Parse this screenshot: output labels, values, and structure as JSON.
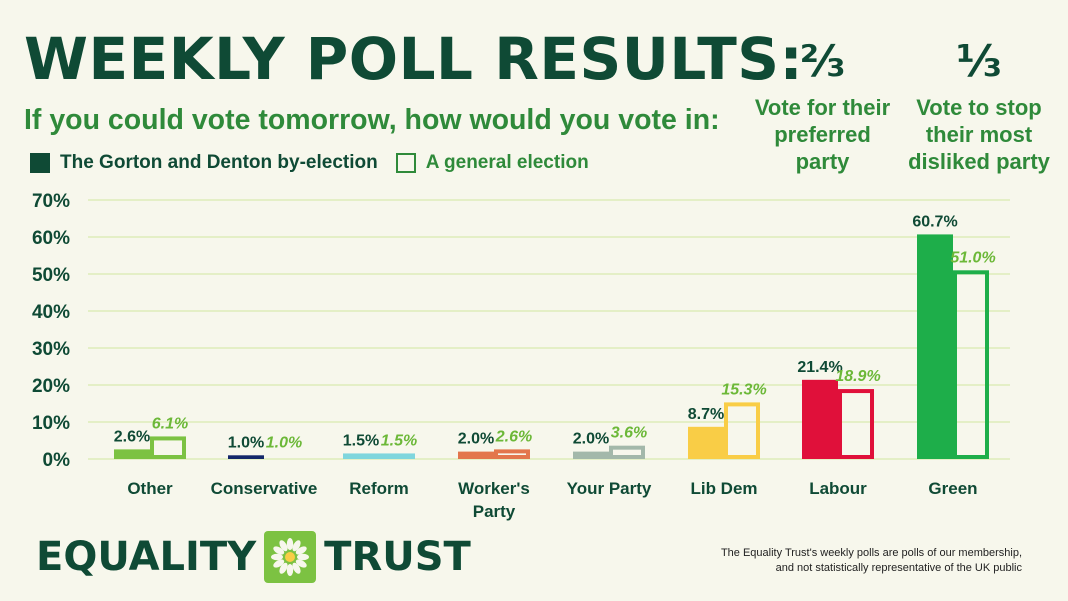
{
  "title": "WEEKLY POLL RESULTS:",
  "subtitle": "If you could vote tomorrow, how would you vote in:",
  "legend": {
    "byelection": "The Gorton and Denton by-election",
    "general": "A general election"
  },
  "stats": [
    {
      "fraction": "⅔",
      "text": [
        "Vote for their",
        "preferred",
        "party"
      ]
    },
    {
      "fraction": "⅓",
      "text": [
        "Vote to stop",
        "their most",
        "disliked party"
      ]
    }
  ],
  "chart_data": {
    "type": "bar",
    "categories": [
      "Other",
      "Conservative",
      "Reform",
      "Worker's Party",
      "Your Party",
      "Lib Dem",
      "Labour",
      "Green"
    ],
    "category_lines": [
      [
        "Other"
      ],
      [
        "Conservative"
      ],
      [
        "Reform"
      ],
      [
        "Worker's",
        "Party"
      ],
      [
        "Your Party"
      ],
      [
        "Lib Dem"
      ],
      [
        "Labour"
      ],
      [
        "Green"
      ]
    ],
    "colors": [
      "#7cc242",
      "#13276a",
      "#7fd6dd",
      "#e3764c",
      "#a3b8aa",
      "#f9cd46",
      "#e0103a",
      "#1eae4a"
    ],
    "series": [
      {
        "name": "The Gorton and Denton by-election",
        "style": "filled",
        "values": [
          2.6,
          1.0,
          1.5,
          2.0,
          2.0,
          8.7,
          21.4,
          60.7
        ],
        "labels": [
          "2.6%",
          "1.0%",
          "1.5%",
          "2.0%",
          "2.0%",
          "8.7%",
          "21.4%",
          "60.7%"
        ]
      },
      {
        "name": "A general election",
        "style": "outline",
        "values": [
          6.1,
          1.0,
          1.5,
          2.6,
          3.6,
          15.3,
          18.9,
          51.0
        ],
        "labels": [
          "6.1%",
          "1.0%",
          "1.5%",
          "2.6%",
          "3.6%",
          "15.3%",
          "18.9%",
          "51.0%"
        ]
      }
    ],
    "yticks": [
      "0%",
      "10%",
      "20%",
      "30%",
      "40%",
      "50%",
      "60%",
      "70%"
    ],
    "ylim": [
      0,
      70
    ],
    "grid": true
  },
  "brand": {
    "left": "EQUALITY",
    "right": "TRUST"
  },
  "disclaimer": [
    "The Equality Trust's weekly polls are polls of our membership,",
    "and not statistically representative of the UK public"
  ]
}
